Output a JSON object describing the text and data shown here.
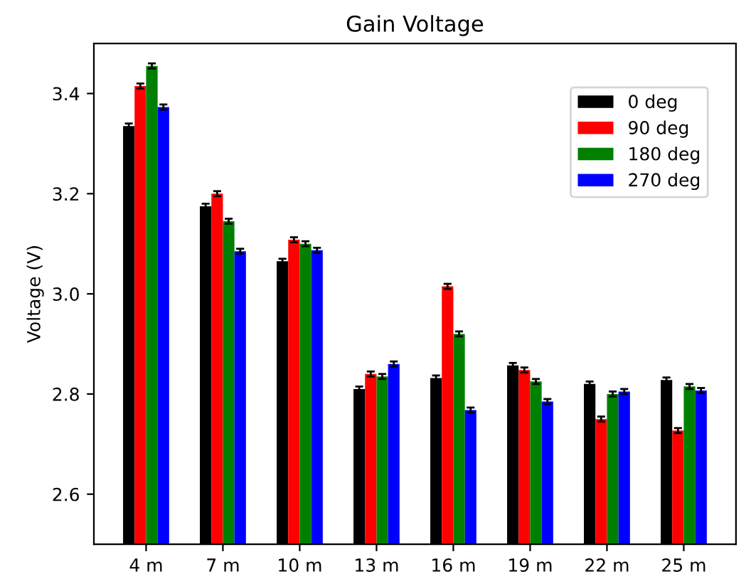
{
  "chart_data": {
    "type": "bar",
    "title": "Gain Voltage",
    "ylabel": "Voltage (V)",
    "categories": [
      "4 m",
      "7 m",
      "10 m",
      "13 m",
      "16 m",
      "19 m",
      "22 m",
      "25 m"
    ],
    "series": [
      {
        "name": "0 deg",
        "color": "#000000",
        "values": [
          3.335,
          3.175,
          3.065,
          2.81,
          2.832,
          2.857,
          2.82,
          2.828
        ],
        "errors": [
          0.005,
          0.005,
          0.005,
          0.005,
          0.005,
          0.005,
          0.005,
          0.005
        ]
      },
      {
        "name": "90 deg",
        "color": "#ff0000",
        "values": [
          3.415,
          3.2,
          3.108,
          2.84,
          3.015,
          2.848,
          2.75,
          2.727
        ],
        "errors": [
          0.005,
          0.005,
          0.005,
          0.005,
          0.005,
          0.005,
          0.005,
          0.005
        ]
      },
      {
        "name": "180 deg",
        "color": "#008000",
        "values": [
          3.455,
          3.145,
          3.1,
          2.835,
          2.92,
          2.825,
          2.8,
          2.815
        ],
        "errors": [
          0.005,
          0.005,
          0.005,
          0.005,
          0.005,
          0.005,
          0.005,
          0.005
        ]
      },
      {
        "name": "270 deg",
        "color": "#0000ff",
        "values": [
          3.373,
          3.085,
          3.087,
          2.86,
          2.768,
          2.785,
          2.805,
          2.807
        ],
        "errors": [
          0.005,
          0.005,
          0.005,
          0.005,
          0.005,
          0.005,
          0.005,
          0.005
        ]
      }
    ],
    "ylim": [
      2.5,
      3.5
    ],
    "yticks": [
      {
        "value": 2.6,
        "label": "2.6"
      },
      {
        "value": 2.8,
        "label": "2.8"
      },
      {
        "value": 3.0,
        "label": "3.0"
      },
      {
        "value": 3.2,
        "label": "3.2"
      },
      {
        "value": 3.4,
        "label": "3.4"
      }
    ],
    "grid": false,
    "legend": "top right"
  }
}
